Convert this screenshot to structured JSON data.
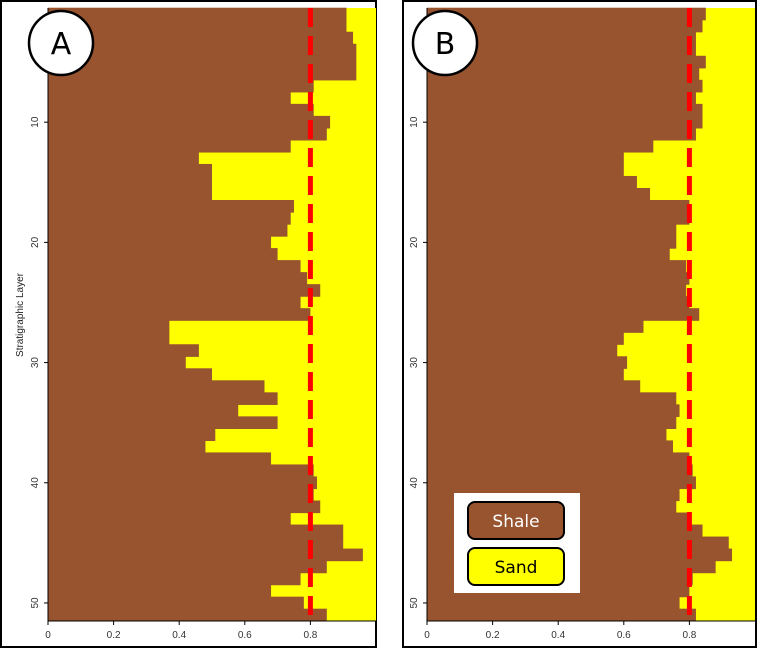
{
  "colors": {
    "shale": "#98532f",
    "sand": "#ffff00",
    "cutoff": "#ff0000",
    "border": "#000000"
  },
  "legend": {
    "items": [
      {
        "label": "Shale",
        "color": "#98532f",
        "text_color": "#ffffff"
      },
      {
        "label": "Sand",
        "color": "#ffff00",
        "text_color": "#000000"
      }
    ]
  },
  "chart_data": [
    {
      "type": "bar",
      "panel_label": "A",
      "orientation": "horizontal",
      "ylabel": "Stratigraphic Layer",
      "xlim": [
        0,
        1
      ],
      "xticks": [
        "0",
        "0.2",
        "0.4",
        "0.6",
        "0.8"
      ],
      "yticks": [
        "10",
        "20",
        "30",
        "40",
        "50"
      ],
      "ylim": [
        1,
        50
      ],
      "cutoff_x": 0.8,
      "series": [
        {
          "name": "Shale",
          "values": [
            0.91,
            0.91,
            0.93,
            0.94,
            0.94,
            0.94,
            0.81,
            0.74,
            0.81,
            0.86,
            0.85,
            0.74,
            0.46,
            0.5,
            0.5,
            0.5,
            0.75,
            0.74,
            0.73,
            0.68,
            0.7,
            0.77,
            0.79,
            0.83,
            0.77,
            0.8,
            0.37,
            0.37,
            0.46,
            0.42,
            0.5,
            0.66,
            0.7,
            0.58,
            0.7,
            0.51,
            0.48,
            0.68,
            0.81,
            0.82,
            0.81,
            0.83,
            0.74,
            0.9,
            0.9,
            0.96,
            0.85,
            0.77,
            0.68,
            0.78,
            0.85
          ]
        }
      ]
    },
    {
      "type": "bar",
      "panel_label": "B",
      "orientation": "horizontal",
      "ylabel": "",
      "xlim": [
        0,
        1
      ],
      "xticks": [
        "0",
        "0.2",
        "0.4",
        "0.6",
        "0.8"
      ],
      "yticks": [
        "10",
        "20",
        "30",
        "40",
        "50"
      ],
      "ylim": [
        1,
        50
      ],
      "cutoff_x": 0.8,
      "series": [
        {
          "name": "Shale",
          "values": [
            0.85,
            0.84,
            0.82,
            0.82,
            0.85,
            0.83,
            0.84,
            0.82,
            0.84,
            0.84,
            0.82,
            0.69,
            0.6,
            0.6,
            0.64,
            0.68,
            0.8,
            0.8,
            0.76,
            0.76,
            0.74,
            0.79,
            0.8,
            0.79,
            0.8,
            0.83,
            0.66,
            0.6,
            0.58,
            0.61,
            0.6,
            0.65,
            0.76,
            0.77,
            0.76,
            0.73,
            0.75,
            0.8,
            0.81,
            0.82,
            0.77,
            0.76,
            0.8,
            0.84,
            0.92,
            0.93,
            0.88,
            0.81,
            0.8,
            0.77,
            0.82
          ]
        }
      ]
    }
  ]
}
